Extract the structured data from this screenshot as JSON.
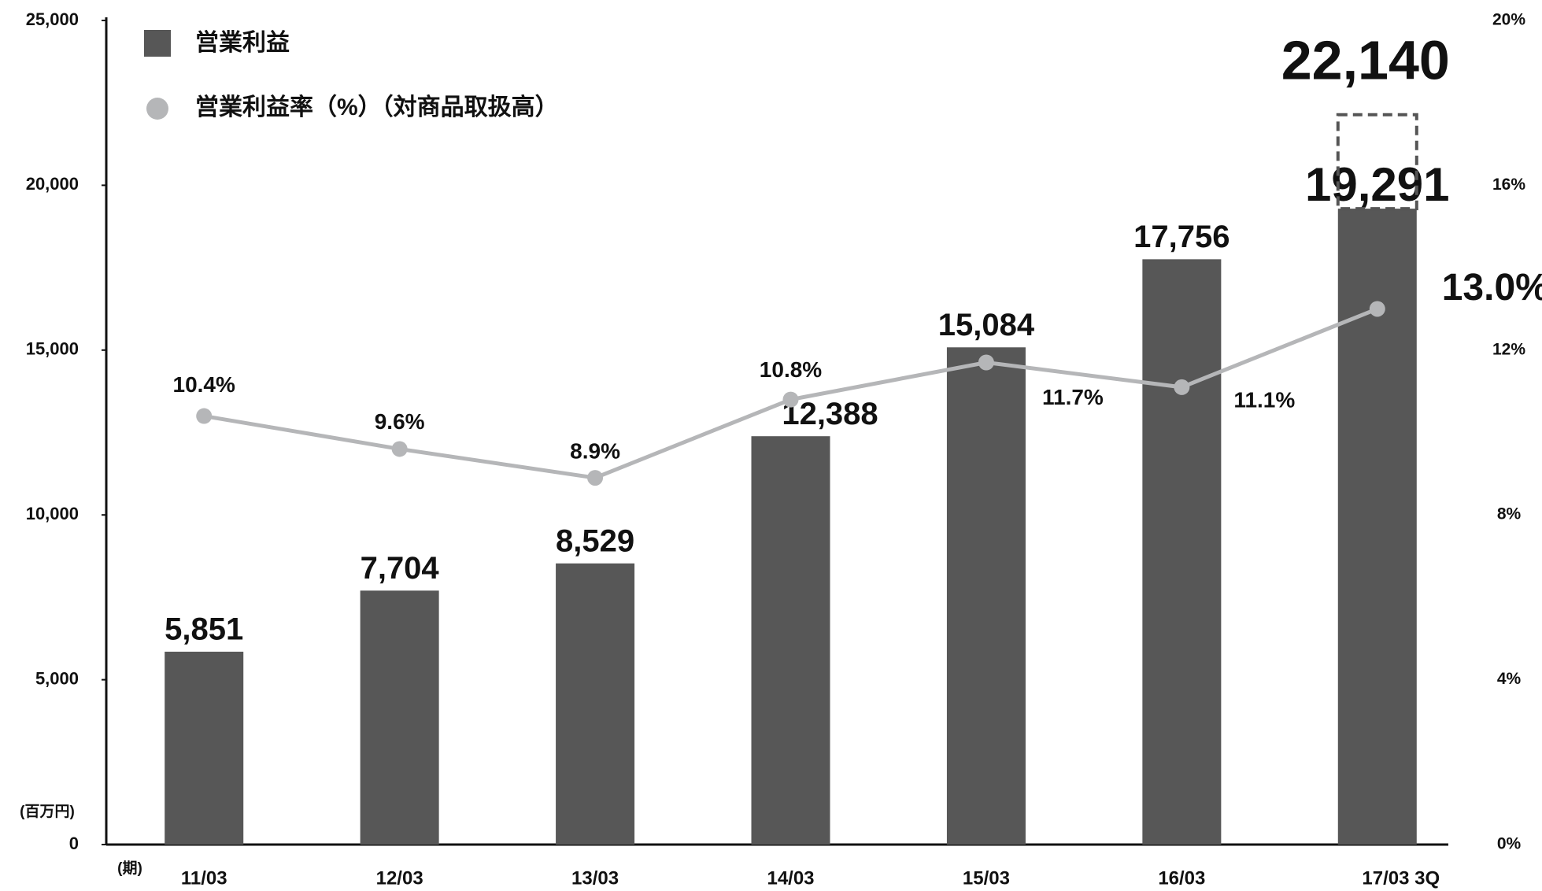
{
  "chart_data": {
    "type": "bar_line",
    "categories": [
      "11/03",
      "12/03",
      "13/03",
      "14/03",
      "15/03",
      "16/03",
      "17/03 3Q"
    ],
    "x_unit_label": "(期)",
    "y_unit_label": "(百万円)",
    "series": [
      {
        "name": "営業利益",
        "type": "bar",
        "color": "#575757",
        "values": [
          5851,
          7704,
          8529,
          12388,
          15084,
          17756,
          19291
        ],
        "value_labels": [
          "5,851",
          "7,704",
          "8,529",
          "12,388",
          "15,084",
          "17,756",
          "19,291"
        ]
      },
      {
        "name": "営業利益率（%）（対商品取扱高）",
        "type": "line",
        "color": "#b5b6b8",
        "axis": "y2",
        "values": [
          10.4,
          9.6,
          8.9,
          10.8,
          11.7,
          11.1,
          13.0
        ],
        "value_labels": [
          "10.4%",
          "9.6%",
          "8.9%",
          "10.8%",
          "11.7%",
          "11.1%",
          "13.0%"
        ]
      }
    ],
    "forecast": {
      "value": 22140,
      "label": "22,140"
    },
    "ylim": [
      0,
      25000
    ],
    "yticks": [
      0,
      {
        "value": 5000,
        "label": "5,000"
      },
      {
        "value": 10000,
        "label": "10,000"
      },
      {
        "value": 15000,
        "label": "15,000"
      },
      {
        "value": 20000,
        "label": "20,000"
      },
      {
        "value": 25000,
        "label": "25,000"
      }
    ],
    "y2lim": [
      0,
      20
    ],
    "y2ticks": [
      {
        "value": 0,
        "label": "0%"
      },
      {
        "value": 4,
        "label": "4%"
      },
      {
        "value": 8,
        "label": "8%"
      },
      {
        "value": 12,
        "label": "12%"
      },
      {
        "value": 16,
        "label": "16%"
      },
      {
        "value": 20,
        "label": "20%"
      }
    ],
    "grid": false,
    "legend": "top-left"
  }
}
